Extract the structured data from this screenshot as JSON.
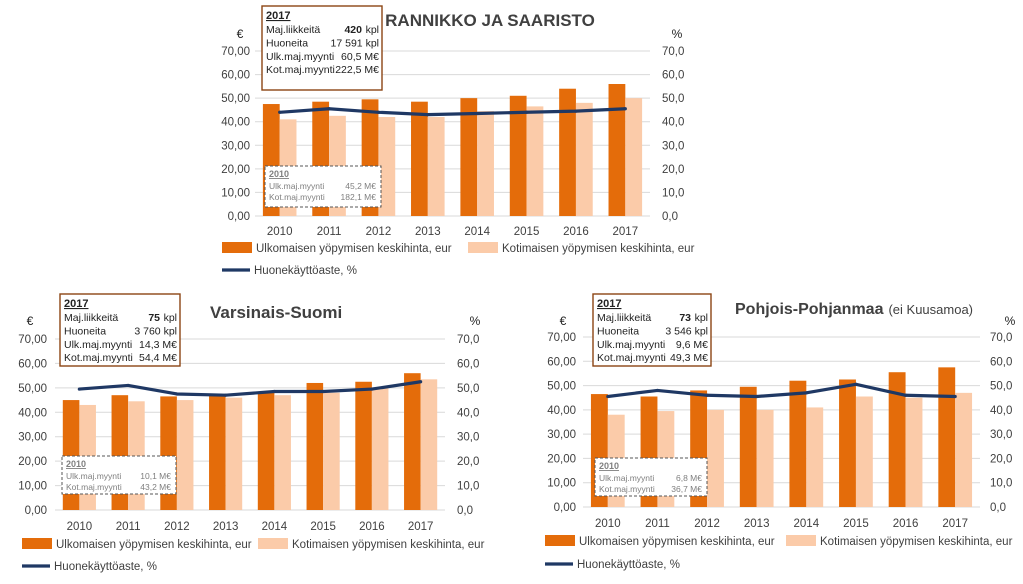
{
  "legend": {
    "foreign": "Ulkomaisen yöpymisen keskihinta, eur",
    "domestic": "Kotimaisen yöpymisen keskihinta, eur",
    "occupancy": "Huonekäyttöaste, %"
  },
  "colors": {
    "foreign": "#E46C0A",
    "domestic": "#FBCBA9",
    "occupancy": "#1F3864"
  },
  "chart_data": [
    {
      "type": "bar",
      "title": "RANNIKKO JA SAARISTO",
      "subtitle": "",
      "categories": [
        "2010",
        "2011",
        "2012",
        "2013",
        "2014",
        "2015",
        "2016",
        "2017"
      ],
      "ylabel": "€",
      "y2label": "%",
      "ylim": [
        0,
        70
      ],
      "y2lim": [
        0,
        70
      ],
      "yticks": [
        "0,00",
        "10,00",
        "20,00",
        "30,00",
        "40,00",
        "50,00",
        "60,00",
        "70,00"
      ],
      "y2ticks": [
        "0,0",
        "10,0",
        "20,0",
        "30,0",
        "40,0",
        "50,0",
        "60,0",
        "70,0"
      ],
      "series": [
        {
          "name": "Ulkomaisen yöpymisen keskihinta, eur",
          "values": [
            47.5,
            48.5,
            49.5,
            48.5,
            50.0,
            51.0,
            54.0,
            56.0
          ]
        },
        {
          "name": "Kotimaisen yöpymisen keskihinta, eur",
          "values": [
            41.0,
            42.5,
            42.0,
            42.0,
            44.5,
            46.5,
            48.0,
            50.0
          ]
        },
        {
          "name": "Huonekäyttöaste, %",
          "values": [
            44.0,
            45.5,
            44.0,
            43.0,
            43.5,
            44.0,
            44.5,
            45.5
          ],
          "axis": "right",
          "kind": "line"
        }
      ],
      "box2017": {
        "year": "2017",
        "rows": [
          {
            "label": "Maj.liikkeitä",
            "value": "420",
            "unit": "kpl"
          },
          {
            "label": "Huoneita",
            "value": "17 591 kpl",
            "unit": ""
          },
          {
            "label": "Ulk.maj.myynti",
            "value": "60,5 M€",
            "unit": ""
          },
          {
            "label": "Kot.maj.myynti",
            "value": "222,5 M€",
            "unit": ""
          }
        ]
      },
      "box2010": {
        "year": "2010",
        "rows": [
          {
            "label": "Ulk.maj.myynti",
            "value": "45,2 M€"
          },
          {
            "label": "Kot.maj.myynti",
            "value": "182,1 M€"
          }
        ]
      }
    },
    {
      "type": "bar",
      "title": "Varsinais-Suomi",
      "subtitle": "",
      "categories": [
        "2010",
        "2011",
        "2012",
        "2013",
        "2014",
        "2015",
        "2016",
        "2017"
      ],
      "ylabel": "€",
      "y2label": "%",
      "ylim": [
        0,
        70
      ],
      "y2lim": [
        0,
        70
      ],
      "yticks": [
        "0,00",
        "10,00",
        "20,00",
        "30,00",
        "40,00",
        "50,00",
        "60,00",
        "70,00"
      ],
      "y2ticks": [
        "0,0",
        "10,0",
        "20,0",
        "30,0",
        "40,0",
        "50,0",
        "60,0",
        "70,0"
      ],
      "series": [
        {
          "name": "Ulkomaisen yöpymisen keskihinta, eur",
          "values": [
            45.0,
            47.0,
            46.5,
            47.5,
            48.5,
            52.0,
            52.5,
            56.0
          ]
        },
        {
          "name": "Kotimaisen yöpymisen keskihinta, eur",
          "values": [
            43.0,
            44.5,
            45.0,
            46.0,
            47.0,
            48.0,
            50.0,
            53.5
          ]
        },
        {
          "name": "Huonekäyttöaste, %",
          "values": [
            49.5,
            51.0,
            47.5,
            47.0,
            48.5,
            48.5,
            49.5,
            52.5
          ],
          "axis": "right",
          "kind": "line"
        }
      ],
      "box2017": {
        "year": "2017",
        "rows": [
          {
            "label": "Maj.liikkeitä",
            "value": "75",
            "unit": "kpl"
          },
          {
            "label": "Huoneita",
            "value": "3 760 kpl",
            "unit": ""
          },
          {
            "label": "Ulk.maj.myynti",
            "value": "14,3 M€",
            "unit": ""
          },
          {
            "label": "Kot.maj.myynti",
            "value": "54,4 M€",
            "unit": ""
          }
        ]
      },
      "box2010": {
        "year": "2010",
        "rows": [
          {
            "label": "Ulk.maj.myynti",
            "value": "10,1 M€"
          },
          {
            "label": "Kot.maj.myynti",
            "value": "43,2 M€"
          }
        ]
      }
    },
    {
      "type": "bar",
      "title": "Pohjois-Pohjanmaa",
      "subtitle": "(ei Kuusamoa)",
      "categories": [
        "2010",
        "2011",
        "2012",
        "2013",
        "2014",
        "2015",
        "2016",
        "2017"
      ],
      "ylabel": "€",
      "y2label": "%",
      "ylim": [
        0,
        70
      ],
      "y2lim": [
        0,
        70
      ],
      "yticks": [
        "0,00",
        "10,00",
        "20,00",
        "30,00",
        "40,00",
        "50,00",
        "60,00",
        "70,00"
      ],
      "y2ticks": [
        "0,0",
        "10,0",
        "20,0",
        "30,0",
        "40,0",
        "50,0",
        "60,0",
        "70,0"
      ],
      "series": [
        {
          "name": "Ulkomaisen yöpymisen keskihinta, eur",
          "values": [
            46.5,
            45.5,
            48.0,
            49.5,
            52.0,
            52.5,
            55.5,
            57.5
          ]
        },
        {
          "name": "Kotimaisen yöpymisen keskihinta, eur",
          "values": [
            38.0,
            39.5,
            40.0,
            40.0,
            41.0,
            45.5,
            45.0,
            47.0
          ]
        },
        {
          "name": "Huonekäyttöaste, %",
          "values": [
            45.5,
            48.0,
            46.0,
            45.5,
            47.0,
            50.5,
            46.0,
            45.5
          ],
          "axis": "right",
          "kind": "line"
        }
      ],
      "box2017": {
        "year": "2017",
        "rows": [
          {
            "label": "Maj.liikkeitä",
            "value": "73",
            "unit": "kpl"
          },
          {
            "label": "Huoneita",
            "value": "3 546 kpl",
            "unit": ""
          },
          {
            "label": "Ulk.maj.myynti",
            "value": "9,6 M€",
            "unit": ""
          },
          {
            "label": "Kot.maj.myynti",
            "value": "49,3 M€",
            "unit": ""
          }
        ]
      },
      "box2010": {
        "year": "2010",
        "rows": [
          {
            "label": "Ulk.maj.myynti",
            "value": "6,8 M€"
          },
          {
            "label": "Kot.maj.myynti",
            "value": "36,7 M€"
          }
        ]
      }
    }
  ]
}
